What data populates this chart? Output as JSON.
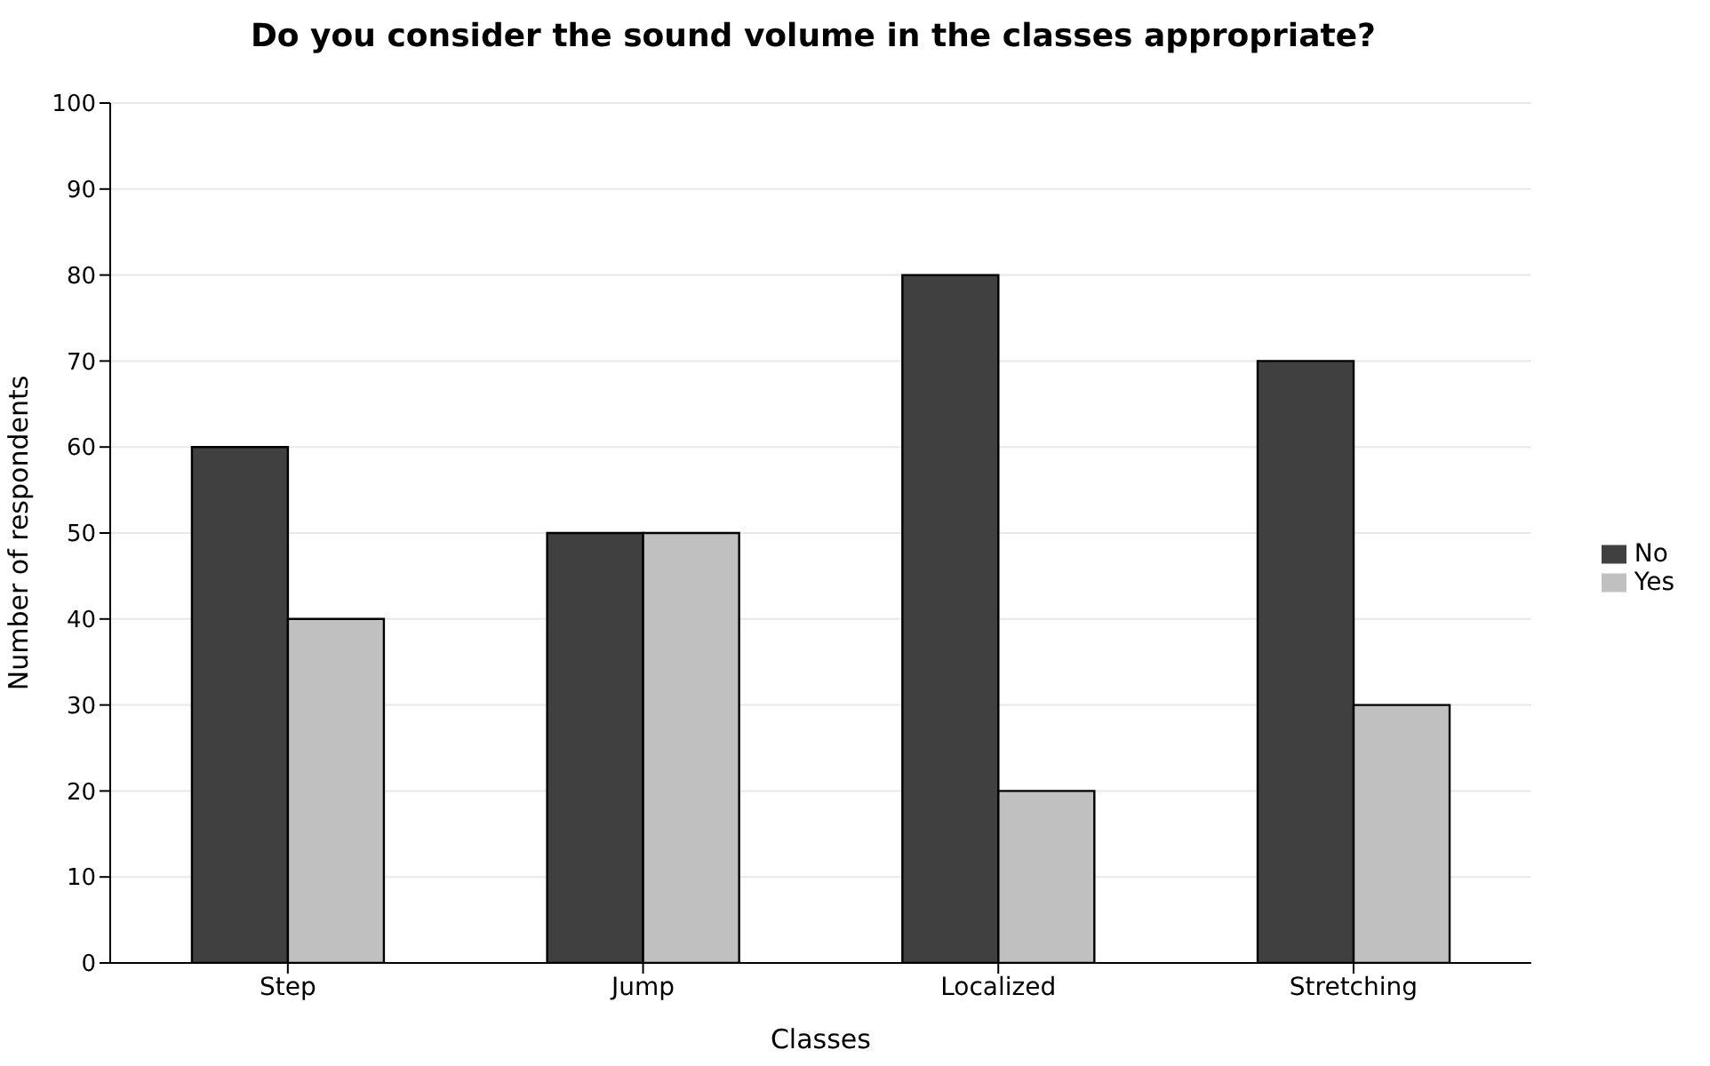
{
  "chart_data": {
    "type": "bar",
    "title": "Do you consider the sound volume in the classes appropriate?",
    "xlabel": "Classes",
    "ylabel": "Number of respondents",
    "categories": [
      "Step",
      "Jump",
      "Localized",
      "Stretching"
    ],
    "series": [
      {
        "name": "No",
        "color": "#404040",
        "values": [
          60,
          50,
          80,
          70
        ]
      },
      {
        "name": "Yes",
        "color": "#c0c0c0",
        "values": [
          40,
          50,
          20,
          30
        ]
      }
    ],
    "ylim": [
      0,
      100
    ],
    "yticks": [
      0,
      10,
      20,
      30,
      40,
      50,
      60,
      70,
      80,
      90,
      100
    ],
    "grid": "y",
    "legend": "right"
  }
}
